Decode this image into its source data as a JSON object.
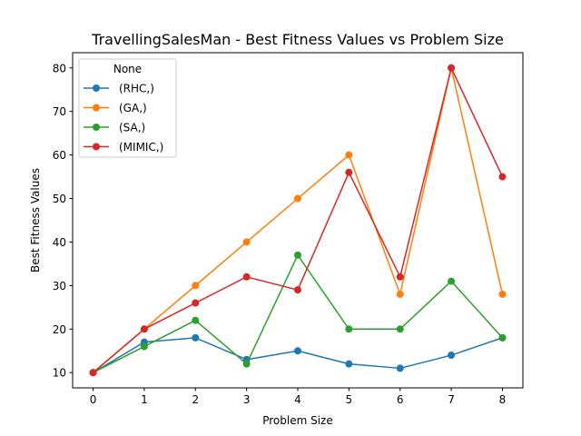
{
  "chart_data": {
    "type": "line",
    "title": "TravellingSalesMan - Best Fitness Values vs Problem Size",
    "xlabel": "Problem Size",
    "ylabel": "Best Fitness Values",
    "x": [
      0,
      1,
      2,
      3,
      4,
      5,
      6,
      7,
      8
    ],
    "xlim": [
      -0.4,
      8.4
    ],
    "ylim": [
      6.5,
      83.5
    ],
    "xticks": [
      0,
      1,
      2,
      3,
      4,
      5,
      6,
      7,
      8
    ],
    "yticks": [
      10,
      20,
      30,
      40,
      50,
      60,
      70,
      80
    ],
    "grid": false,
    "legend": {
      "title": "None",
      "placement": "top-left"
    },
    "series": [
      {
        "name": "(RHC,)",
        "color": "#1f77b4",
        "values": [
          10,
          17,
          18,
          13,
          15,
          12,
          11,
          14,
          18
        ]
      },
      {
        "name": "(GA,)",
        "color": "#ff7f0e",
        "values": [
          10,
          20,
          30,
          40,
          50,
          60,
          28,
          80,
          28
        ]
      },
      {
        "name": "(SA,)",
        "color": "#2ca02c",
        "values": [
          10,
          16,
          22,
          12,
          37,
          20,
          20,
          31,
          18
        ]
      },
      {
        "name": "(MIMIC,)",
        "color": "#d62728",
        "values": [
          10,
          20,
          26,
          32,
          29,
          56,
          32,
          80,
          55
        ]
      }
    ]
  }
}
